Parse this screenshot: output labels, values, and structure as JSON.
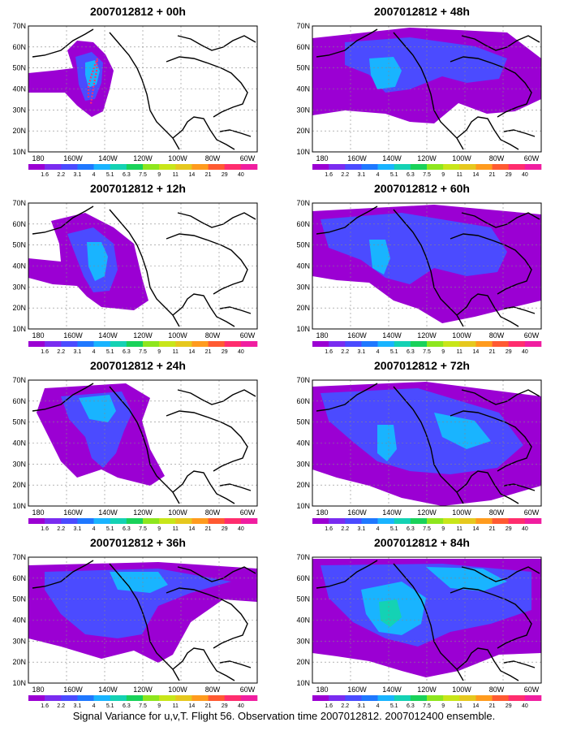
{
  "figure": {
    "footer": "Signal Variance for u,v,T. Flight 56. Observation time 2007012812. 2007012400 ensemble."
  },
  "axes": {
    "y_ticks": [
      "70N",
      "60N",
      "50N",
      "40N",
      "30N",
      "20N",
      "10N"
    ],
    "x_ticks": [
      "180",
      "160W",
      "140W",
      "120W",
      "100W",
      "80W",
      "60W"
    ]
  },
  "colorbar": {
    "labels": [
      "1.6",
      "2.2",
      "3.1",
      "4",
      "5.1",
      "6.3",
      "7.5",
      "9",
      "11",
      "14",
      "21",
      "29",
      "40"
    ],
    "colors": [
      "#9b00d3",
      "#7a2cf0",
      "#4b4bff",
      "#1f78ff",
      "#19b4ff",
      "#14d2b4",
      "#19d25a",
      "#8ee61e",
      "#c8e619",
      "#e6c81e",
      "#ff9b1e",
      "#ff5a32",
      "#ff2d6e",
      "#f01ea0"
    ]
  },
  "panels": [
    {
      "title": "2007012812 + 00h"
    },
    {
      "title": "2007012812 + 48h"
    },
    {
      "title": "2007012812 + 12h"
    },
    {
      "title": "2007012812 + 60h"
    },
    {
      "title": "2007012812 + 24h"
    },
    {
      "title": "2007012812 + 72h"
    },
    {
      "title": "2007012812 + 36h"
    },
    {
      "title": "2007012812 + 84h"
    }
  ]
}
